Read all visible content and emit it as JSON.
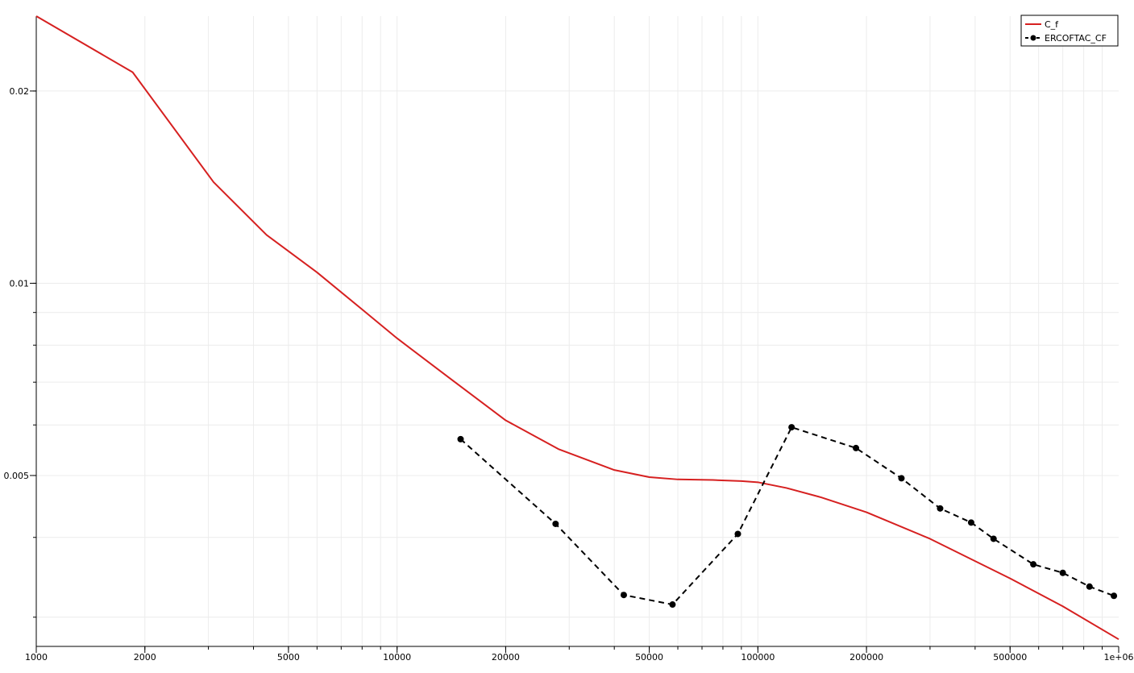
{
  "chart_data": {
    "type": "line",
    "x_scale": "log",
    "y_scale": "log",
    "xlim": [
      1000,
      1000000
    ],
    "ylim": [
      0.0027,
      0.0262
    ],
    "grid": true,
    "legend_position": "top-right",
    "x_ticks": [
      {
        "value": 1000,
        "label": "1000"
      },
      {
        "value": 2000,
        "label": "2000"
      },
      {
        "value": 5000,
        "label": "5000"
      },
      {
        "value": 10000,
        "label": "10000"
      },
      {
        "value": 20000,
        "label": "20000"
      },
      {
        "value": 50000,
        "label": "50000"
      },
      {
        "value": 100000,
        "label": "100000"
      },
      {
        "value": 200000,
        "label": "200000"
      },
      {
        "value": 500000,
        "label": "500000"
      },
      {
        "value": 1000000,
        "label": "1e+06"
      }
    ],
    "y_ticks": [
      {
        "value": 0.005,
        "label": "0.005"
      },
      {
        "value": 0.01,
        "label": "0.01"
      },
      {
        "value": 0.02,
        "label": "0.02"
      }
    ],
    "series": [
      {
        "name": "C_f",
        "color": "#d62020",
        "style": "solid",
        "markers": false,
        "x": [
          1000,
          1850,
          3100,
          4350,
          6000,
          8000,
          10000,
          14000,
          20000,
          28000,
          40000,
          50000,
          60000,
          75000,
          90000,
          100000,
          120000,
          150000,
          200000,
          300000,
          500000,
          700000,
          1000000
        ],
        "y": [
          0.0262,
          0.0214,
          0.0144,
          0.0119,
          0.0104,
          0.0091,
          0.0082,
          0.0071,
          0.0061,
          0.0055,
          0.0051,
          0.00497,
          0.00493,
          0.00492,
          0.0049,
          0.00488,
          0.00478,
          0.00462,
          0.00438,
          0.00398,
          0.00345,
          0.00312,
          0.00277
        ]
      },
      {
        "name": "ERCOFTAC_CF",
        "color": "#000000",
        "style": "dashed",
        "markers": true,
        "x": [
          15000,
          27500,
          42500,
          58000,
          88000,
          124000,
          187000,
          250000,
          320000,
          390000,
          450000,
          580000,
          700000,
          830000,
          970000
        ],
        "y": [
          0.0057,
          0.0042,
          0.00325,
          0.00314,
          0.00405,
          0.00595,
          0.00552,
          0.00495,
          0.00444,
          0.00422,
          0.00398,
          0.00363,
          0.00352,
          0.00335,
          0.00324
        ]
      }
    ]
  }
}
